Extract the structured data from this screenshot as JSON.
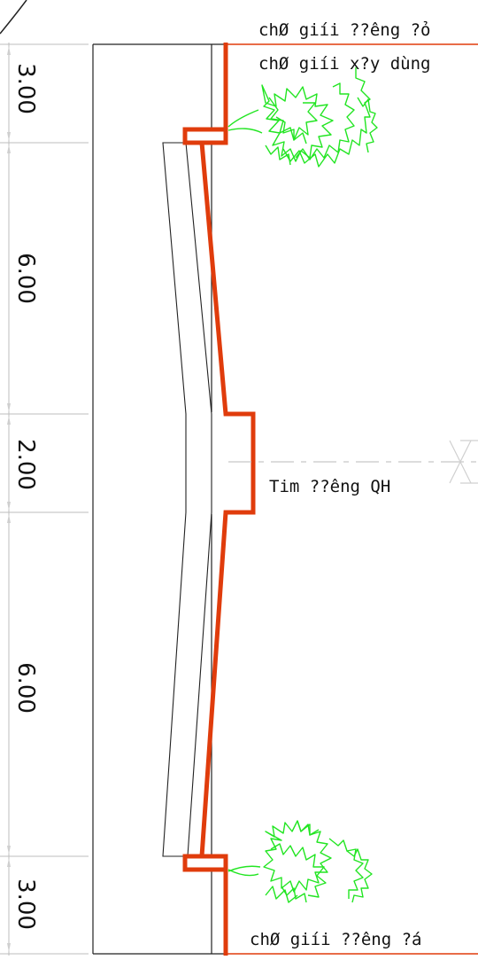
{
  "labels": {
    "top_line_1": "chØ giíi ??êng ?ỏ",
    "top_line_2": "chØ giíi x?y dùng",
    "centerline": "Tim ??êng QH",
    "bottom_line": "chØ giíi ??êng ?á"
  },
  "dimensions": [
    "3.00",
    "6.00",
    "2.00",
    "6.00",
    "3.00"
  ],
  "colors": {
    "boundary": "#e03c0c",
    "tree": "#22e522",
    "line": "#222222",
    "dim": "#b8b8b8"
  }
}
